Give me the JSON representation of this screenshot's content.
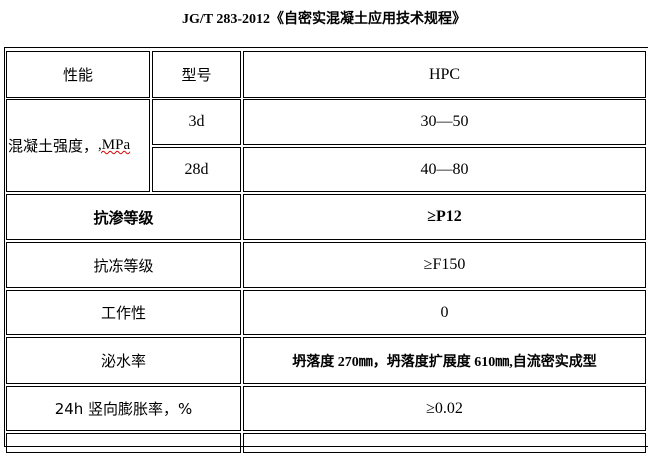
{
  "title": "JG/T 283-2012《自密实混凝土应用技术规程》",
  "table": {
    "header": {
      "property": "性能",
      "model": "型号",
      "value": "HPC"
    },
    "strength": {
      "label": "混凝土强度，",
      "unit": ",MPa",
      "rows": [
        {
          "age": "3d",
          "value": "30—50"
        },
        {
          "age": "28d",
          "value": "40—80"
        }
      ]
    },
    "rows": [
      {
        "label": "抗渗等级",
        "value": "≥P12"
      },
      {
        "label": "抗冻等级",
        "value": "≥F150"
      },
      {
        "label": "工作性",
        "value": "0"
      },
      {
        "label": "泌水率",
        "value": "坍落度 270㎜，坍落度扩展度 610㎜,自流密实成型"
      },
      {
        "label": "24h 竖向膨胀率，%",
        "value": "≥0.02"
      }
    ]
  }
}
